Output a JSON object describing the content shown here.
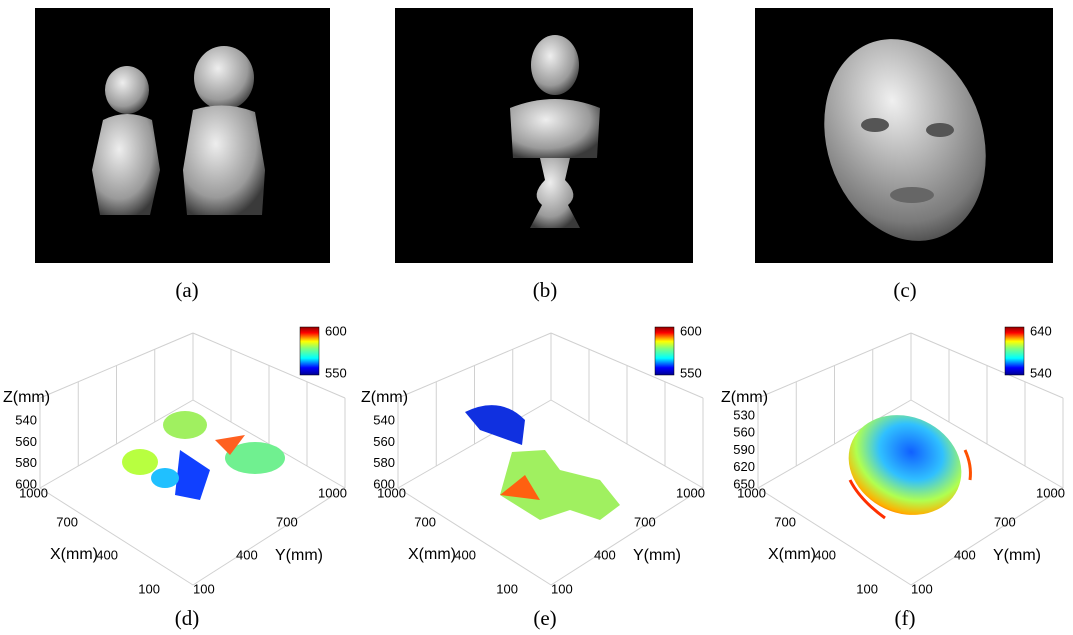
{
  "photos": [
    {
      "caption": "(a)"
    },
    {
      "caption": "(b)"
    },
    {
      "caption": "(c)"
    }
  ],
  "plots": [
    {
      "caption": "(d)",
      "z_label": "Z(mm)",
      "z_ticks": [
        "540",
        "560",
        "580",
        "600"
      ],
      "x_label": "X(mm)",
      "x_ticks": [
        "1000",
        "700",
        "400",
        "100"
      ],
      "y_label": "Y(mm)",
      "y_ticks": [
        "100",
        "400",
        "700",
        "1000"
      ],
      "colorbar": [
        "600",
        "550"
      ]
    },
    {
      "caption": "(e)",
      "z_label": "Z(mm)",
      "z_ticks": [
        "540",
        "560",
        "580",
        "600"
      ],
      "x_label": "X(mm)",
      "x_ticks": [
        "1000",
        "700",
        "400",
        "100"
      ],
      "y_label": "Y(mm)",
      "y_ticks": [
        "100",
        "400",
        "700",
        "1000"
      ],
      "colorbar": [
        "600",
        "550"
      ]
    },
    {
      "caption": "(f)",
      "z_label": "Z(mm)",
      "z_ticks": [
        "530",
        "560",
        "590",
        "620",
        "650"
      ],
      "x_label": "X(mm)",
      "x_ticks": [
        "1000",
        "700",
        "400",
        "100"
      ],
      "y_label": "Y(mm)",
      "y_ticks": [
        "100",
        "400",
        "700",
        "1000"
      ],
      "colorbar": [
        "640",
        "540"
      ]
    }
  ]
}
